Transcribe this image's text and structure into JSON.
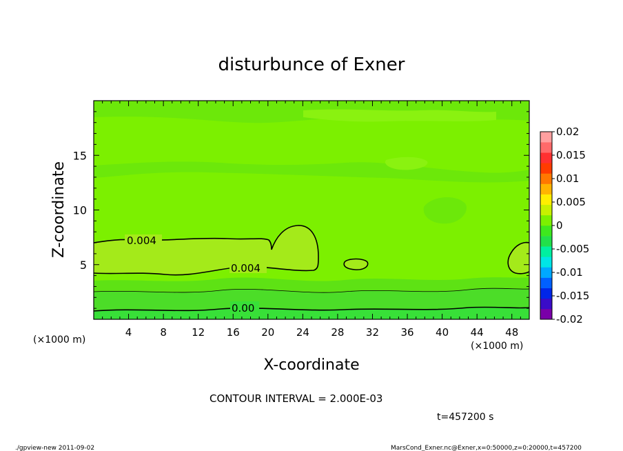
{
  "chart_data": {
    "type": "heatmap",
    "title": "disturbunce of Exner",
    "xlabel": "X-coordinate",
    "ylabel": "Z-coordinate",
    "x_unit_left": "(×1000 m)",
    "x_unit_right": "(×1000 m)",
    "xlim": [
      0,
      50
    ],
    "ylim": [
      0,
      20
    ],
    "x_ticks": [
      "4",
      "8",
      "12",
      "16",
      "20",
      "24",
      "28",
      "32",
      "36",
      "40",
      "44",
      "48"
    ],
    "y_ticks": [
      "5",
      "10",
      "15"
    ],
    "contour_interval": "CONTOUR INTERVAL = 2.000E-03",
    "time_label": "t=457200 s",
    "footer_left": "./gpview-new   2011-09-02",
    "footer_right": "MarsCond_Exner.nc@Exner,x=0:50000,z=0:20000,t=457200",
    "contour_labels": [
      "0.004",
      "0.004",
      "0.00"
    ],
    "colorbar": {
      "ticks": [
        "0.02",
        "0.015",
        "0.01",
        "0.005",
        "0",
        "-0.005",
        "-0.01",
        "-0.015",
        "-0.02"
      ],
      "range": [
        -0.02,
        0.02
      ],
      "colors": [
        "#7a00a8",
        "#3a0cc8",
        "#0026e8",
        "#0060ff",
        "#00a8ff",
        "#00e6e6",
        "#00f0a0",
        "#22e04a",
        "#3ee81e",
        "#7cf000",
        "#c8f000",
        "#ffee00",
        "#ffb400",
        "#ff7800",
        "#ff3c00",
        "#ff3030",
        "#ff6a6a",
        "#ffa0a0"
      ]
    },
    "field_colors": {
      "deep": "#4cdd28",
      "near_zero": "#3ee81e",
      "base": "#7cf000",
      "positive_layer": "#a4ea1a",
      "dark_patch": "#6ce80a"
    }
  }
}
